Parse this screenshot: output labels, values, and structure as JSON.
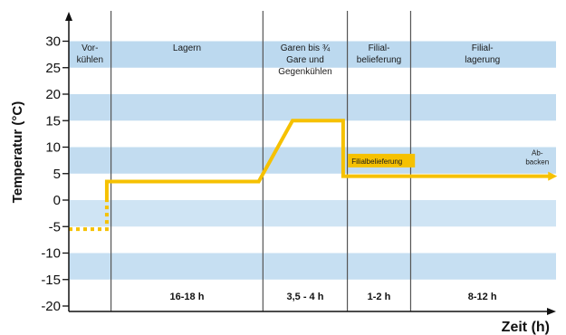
{
  "chart_data": {
    "type": "line",
    "ylabel": "Temperatur (°C)",
    "xlabel": "Zeit (h)",
    "ylim": [
      -20,
      35
    ],
    "yticks": [
      -20,
      -15,
      -10,
      -5,
      0,
      5,
      10,
      15,
      20,
      25,
      30
    ],
    "bands": [
      {
        "from": 25,
        "to": 30,
        "color": "#bcd9ef"
      },
      {
        "from": 15,
        "to": 20,
        "color": "#c2dcf0"
      },
      {
        "from": 5,
        "to": 10,
        "color": "#c2dcf0"
      },
      {
        "from": -5,
        "to": 0,
        "color": "#cfe4f4"
      },
      {
        "from": -15,
        "to": -10,
        "color": "#c6dff2"
      }
    ],
    "phases": [
      {
        "label": [
          "Vor-",
          "kühlen"
        ],
        "duration": ""
      },
      {
        "label": [
          "Lagern"
        ],
        "duration": "16-18 h"
      },
      {
        "label": [
          "Garen bis ¾",
          "Gare und",
          "Gegenkühlen"
        ],
        "duration": "3,5 - 4 h"
      },
      {
        "label": [
          "Filial-",
          "belieferung"
        ],
        "duration": "1-2 h"
      },
      {
        "label": [
          "Filial-",
          "lagerung"
        ],
        "duration": "8-12 h"
      }
    ],
    "phase_bounds": [
      0,
      1,
      4.6,
      6.6,
      8.1,
      11.5
    ],
    "series": [
      {
        "style": "dotted",
        "color": "#f6c100",
        "x": [
          0,
          0.9,
          0.9
        ],
        "y": [
          -5.5,
          -5.5,
          0
        ]
      },
      {
        "style": "solid",
        "color": "#f6c100",
        "x": [
          0.9,
          0.9,
          4.5,
          5.3,
          6.5,
          6.5,
          11.4
        ],
        "y": [
          0,
          3.5,
          3.5,
          15,
          15,
          4.5,
          4.5
        ]
      }
    ],
    "annotations": [
      {
        "text": "Filialbelieferung",
        "x": 6.7,
        "y": 7.2,
        "boxed": true,
        "box_color": "#f6c100"
      },
      {
        "text": [
          "Ab-",
          "backen"
        ],
        "x": 11.1,
        "y": 8.5
      }
    ],
    "grid": false,
    "legend": "none"
  }
}
